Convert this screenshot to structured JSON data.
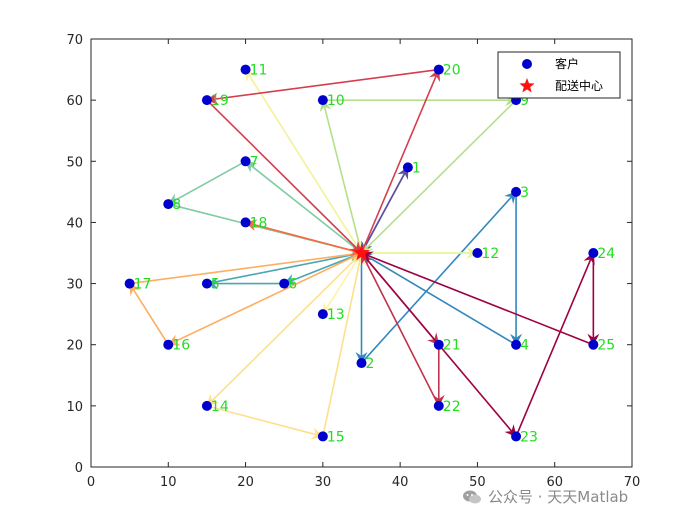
{
  "chart_data": {
    "type": "scatter",
    "xlim": [
      0,
      70
    ],
    "ylim": [
      0,
      70
    ],
    "xticks": [
      0,
      10,
      20,
      30,
      40,
      50,
      60,
      70
    ],
    "yticks": [
      0,
      10,
      20,
      30,
      40,
      50,
      60,
      70
    ],
    "grid": false,
    "legend_position": "top-right",
    "legend": [
      {
        "label": "客户",
        "marker": "circle",
        "color": "#0000cc"
      },
      {
        "label": "配送中心",
        "marker": "star",
        "color": "#ff1111"
      }
    ],
    "depot": {
      "x": 35,
      "y": 35
    },
    "customers": [
      {
        "id": "1",
        "x": 41,
        "y": 49
      },
      {
        "id": "2",
        "x": 35,
        "y": 17
      },
      {
        "id": "3",
        "x": 55,
        "y": 45
      },
      {
        "id": "4",
        "x": 55,
        "y": 20
      },
      {
        "id": "5",
        "x": 15,
        "y": 30
      },
      {
        "id": "6",
        "x": 25,
        "y": 30
      },
      {
        "id": "7",
        "x": 20,
        "y": 50
      },
      {
        "id": "8",
        "x": 10,
        "y": 43
      },
      {
        "id": "9",
        "x": 55,
        "y": 60
      },
      {
        "id": "10",
        "x": 30,
        "y": 60
      },
      {
        "id": "11",
        "x": 20,
        "y": 65
      },
      {
        "id": "12",
        "x": 50,
        "y": 35
      },
      {
        "id": "13",
        "x": 30,
        "y": 25
      },
      {
        "id": "14",
        "x": 15,
        "y": 10
      },
      {
        "id": "15",
        "x": 30,
        "y": 5
      },
      {
        "id": "16",
        "x": 10,
        "y": 20
      },
      {
        "id": "17",
        "x": 5,
        "y": 30
      },
      {
        "id": "18",
        "x": 20,
        "y": 40
      },
      {
        "id": "19",
        "x": 15,
        "y": 60
      },
      {
        "id": "20",
        "x": 45,
        "y": 65
      },
      {
        "id": "21",
        "x": 45,
        "y": 20
      },
      {
        "id": "22",
        "x": 45,
        "y": 10
      },
      {
        "id": "23",
        "x": 55,
        "y": 5
      },
      {
        "id": "24",
        "x": 65,
        "y": 35
      },
      {
        "id": "25",
        "x": 65,
        "y": 20
      }
    ],
    "routes": [
      {
        "color": "#5e4fa2",
        "stops": [
          "1"
        ]
      },
      {
        "color": "#3288bd",
        "stops": [
          "2",
          "3",
          "4"
        ]
      },
      {
        "color": "#4aa6b2",
        "stops": [
          "6",
          "5"
        ]
      },
      {
        "color": "#80cba4",
        "stops": [
          "7",
          "8"
        ]
      },
      {
        "color": "#b5e08a",
        "stops": [
          "10",
          "9"
        ]
      },
      {
        "color": "#e6f598",
        "stops": [
          "12"
        ]
      },
      {
        "color": "#f3f3a0",
        "stops": [
          "11"
        ]
      },
      {
        "color": "#fff3b0",
        "stops": [
          "13"
        ]
      },
      {
        "color": "#fee08b",
        "stops": [
          "14",
          "15"
        ]
      },
      {
        "color": "#fdae61",
        "stops": [
          "16",
          "17"
        ]
      },
      {
        "color": "#f46d43",
        "stops": [
          "18"
        ]
      },
      {
        "color": "#d53e4f",
        "stops": [
          "20",
          "19"
        ]
      },
      {
        "color": "#c2334d",
        "stops": [
          "21",
          "22"
        ]
      },
      {
        "color": "#9e0142",
        "stops": [
          "23",
          "24",
          "25"
        ]
      }
    ]
  },
  "watermark": {
    "text": "公众号 · 天天Matlab"
  }
}
